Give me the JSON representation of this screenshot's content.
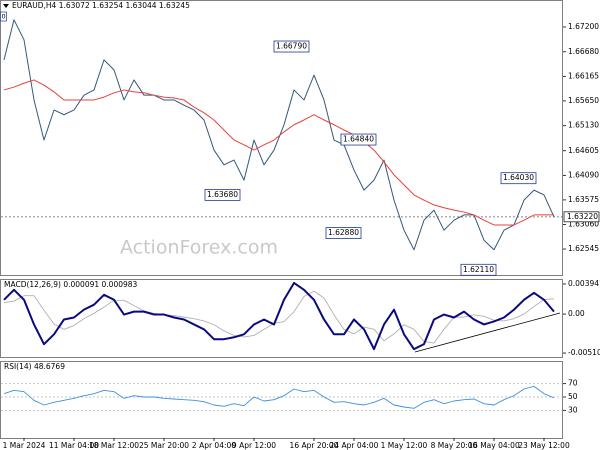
{
  "chart_data": [
    {
      "type": "line",
      "title": "EURAUD,H4 1.63072 1.63254 1.63044 1.63245",
      "corner_label": "0",
      "watermark": "ActionForex.com",
      "ylim": [
        1.62001,
        1.67765
      ],
      "yticks": [
        {
          "value": 1.672,
          "label": "1.67200"
        },
        {
          "value": 1.6668,
          "label": "1.66680"
        },
        {
          "value": 1.66165,
          "label": "1.66165"
        },
        {
          "value": 1.6565,
          "label": "1.65650"
        },
        {
          "value": 1.6513,
          "label": "1.65130"
        },
        {
          "value": 1.64605,
          "label": "1.64605"
        },
        {
          "value": 1.6409,
          "label": "1.64090"
        },
        {
          "value": 1.63575,
          "label": "1.63575"
        },
        {
          "value": 1.6306,
          "label": "1.63060"
        },
        {
          "value": 1.62545,
          "label": "1.62545"
        }
      ],
      "grid": false,
      "last_price": {
        "value": 1.6322,
        "label": "1.63220"
      },
      "annotations": [
        {
          "value": 1.6679,
          "label": "1.66790"
        },
        {
          "value": 1.6484,
          "label": "1.64840"
        },
        {
          "value": 1.6368,
          "label": "1.63680"
        },
        {
          "value": 1.6288,
          "label": "1.62880"
        },
        {
          "value": 1.6403,
          "label": "1.64030"
        },
        {
          "value": 1.6211,
          "label": "1.62110"
        }
      ],
      "series": [
        {
          "color": "#34587c",
          "values": [
            1.6651,
            1.6735,
            1.6693,
            1.6567,
            1.6483,
            1.6546,
            1.6536,
            1.6546,
            1.6577,
            1.6588,
            1.6651,
            1.663,
            1.6567,
            1.6609,
            1.6577,
            1.6577,
            1.6567,
            1.6567,
            1.6556,
            1.6546,
            1.6525,
            1.6462,
            1.6431,
            1.6441,
            1.6399,
            1.6483,
            1.6431,
            1.6462,
            1.6515,
            1.6588,
            1.6567,
            1.6619,
            1.6567,
            1.6483,
            1.6473,
            1.642,
            1.6378,
            1.6399,
            1.6441,
            1.6357,
            1.6294,
            1.6253,
            1.6315,
            1.6336,
            1.6294,
            1.6315,
            1.6326,
            1.6326,
            1.6273,
            1.6253,
            1.6294,
            1.6305,
            1.6357,
            1.6378,
            1.6368,
            1.6322
          ]
        },
        {
          "color": "#e8403a",
          "values": [
            1.6588,
            1.6594,
            1.6602,
            1.6609,
            1.6598,
            1.6584,
            1.6567,
            1.6567,
            1.6567,
            1.6567,
            1.6573,
            1.6582,
            1.6588,
            1.6584,
            1.6582,
            1.6577,
            1.6573,
            1.6571,
            1.6567,
            1.6552,
            1.654,
            1.6525,
            1.6504,
            1.6483,
            1.6473,
            1.6462,
            1.6473,
            1.6483,
            1.65,
            1.6515,
            1.6525,
            1.6536,
            1.6525,
            1.6515,
            1.6504,
            1.6494,
            1.6479,
            1.6462,
            1.6437,
            1.641,
            1.6389,
            1.6368,
            1.6357,
            1.6347,
            1.6341,
            1.6336,
            1.6332,
            1.6326,
            1.6315,
            1.6305,
            1.6305,
            1.6305,
            1.6315,
            1.6326,
            1.6326,
            1.6326
          ]
        }
      ]
    },
    {
      "type": "line",
      "title": "MACD(12,26,9) 0.000091 0.000983",
      "ylim": [
        -0.00562,
        0.00459
      ],
      "yticks": [
        {
          "value": 0.003941,
          "label": "0.003941"
        },
        {
          "value": 0,
          "label": "0.00"
        },
        {
          "value": -0.005103,
          "label": "-0.005103"
        }
      ],
      "grid": false,
      "series": [
        {
          "color": "#b0b0b0",
          "values": [
            0.0015,
            0.0017,
            0.0024,
            0.0024,
            0.0005,
            -0.0013,
            -0.002,
            -0.0015,
            -0.0006,
            0.0001,
            0.0009,
            0.0018,
            0.0018,
            0.0011,
            0.0004,
            0.0001,
            -0.0001,
            -0.0002,
            -0.0004,
            -0.0006,
            -0.0009,
            -0.0014,
            -0.0022,
            -0.0028,
            -0.003,
            -0.0028,
            -0.002,
            -0.0012,
            -0.001,
            0.0003,
            0.0023,
            0.003,
            0.0021,
            -0.0001,
            -0.002,
            -0.0026,
            -0.0017,
            -0.002,
            -0.0035,
            -0.0026,
            -0.0014,
            -0.002,
            -0.0036,
            -0.0038,
            -0.002,
            -0.0004,
            -0.0004,
            -0.0001,
            -0.0003,
            -0.0008,
            -0.0009,
            -0.0006,
            0.0,
            0.001,
            0.0019,
            0.002
          ]
        },
        {
          "color": "#0a0a80",
          "values": [
            0.00187,
            0.00317,
            0.00187,
            -0.00136,
            -0.00394,
            -0.00265,
            -0.00071,
            -0.00045,
            0.00058,
            0.00123,
            0.00252,
            0.00187,
            -6e-05,
            0.00032,
            0.00032,
            -6e-05,
            -6e-05,
            -0.00045,
            -0.00071,
            -0.00136,
            -0.002,
            -0.00329,
            -0.00329,
            -0.00304,
            -0.00265,
            -0.00136,
            -0.00071,
            -0.00136,
            0.00187,
            0.00407,
            0.00317,
            0.00187,
            -0.00071,
            -0.00265,
            -0.00265,
            -0.00071,
            -0.002,
            -0.00459,
            -0.00136,
            0.00058,
            -0.00265,
            -0.00459,
            -0.00394,
            -0.00071,
            -6e-05,
            -0.00045,
            0.00032,
            -0.00071,
            -0.00136,
            -0.00097,
            -0.00045,
            0.00058,
            0.00187,
            0.00278,
            0.00187,
            0.00032
          ]
        }
      ]
    },
    {
      "type": "line",
      "title": "RSI(14) 48.6769",
      "ylim": [
        -11.5,
        104
      ],
      "yticks": [
        70,
        50,
        30
      ],
      "grid": true,
      "series": [
        {
          "color": "#3c8fe0",
          "values": [
            55,
            60,
            58,
            45,
            38,
            42,
            45,
            48,
            52,
            55,
            60,
            58,
            48,
            52,
            50,
            50,
            48,
            47,
            46,
            45,
            43,
            38,
            36,
            40,
            37,
            50,
            44,
            46,
            52,
            62,
            58,
            60,
            50,
            42,
            43,
            40,
            38,
            42,
            48,
            38,
            35,
            33,
            42,
            46,
            40,
            44,
            46,
            47,
            40,
            38,
            46,
            52,
            62,
            66,
            55,
            48.6769
          ]
        }
      ],
      "xticks": [
        {
          "value": 2,
          "label": "1 Mar 2024"
        },
        {
          "value": 7,
          "label": "11 Mar 04:00"
        },
        {
          "value": 11,
          "label": "18 Mar 12:00"
        },
        {
          "value": 16,
          "label": "25 Mar 20:00"
        },
        {
          "value": 21,
          "label": "2 Apr 04:00"
        },
        {
          "value": 25,
          "label": "9 Apr 12:00"
        },
        {
          "value": 31,
          "label": "16 Apr 20:00"
        },
        {
          "value": 35,
          "label": "24 Apr 04:00"
        },
        {
          "value": 40,
          "label": "1 May 12:00"
        },
        {
          "value": 45,
          "label": "8 May 20:00"
        },
        {
          "value": 49,
          "label": "16 May 04:00"
        },
        {
          "value": 54,
          "label": "23 May 12:00"
        }
      ]
    }
  ]
}
